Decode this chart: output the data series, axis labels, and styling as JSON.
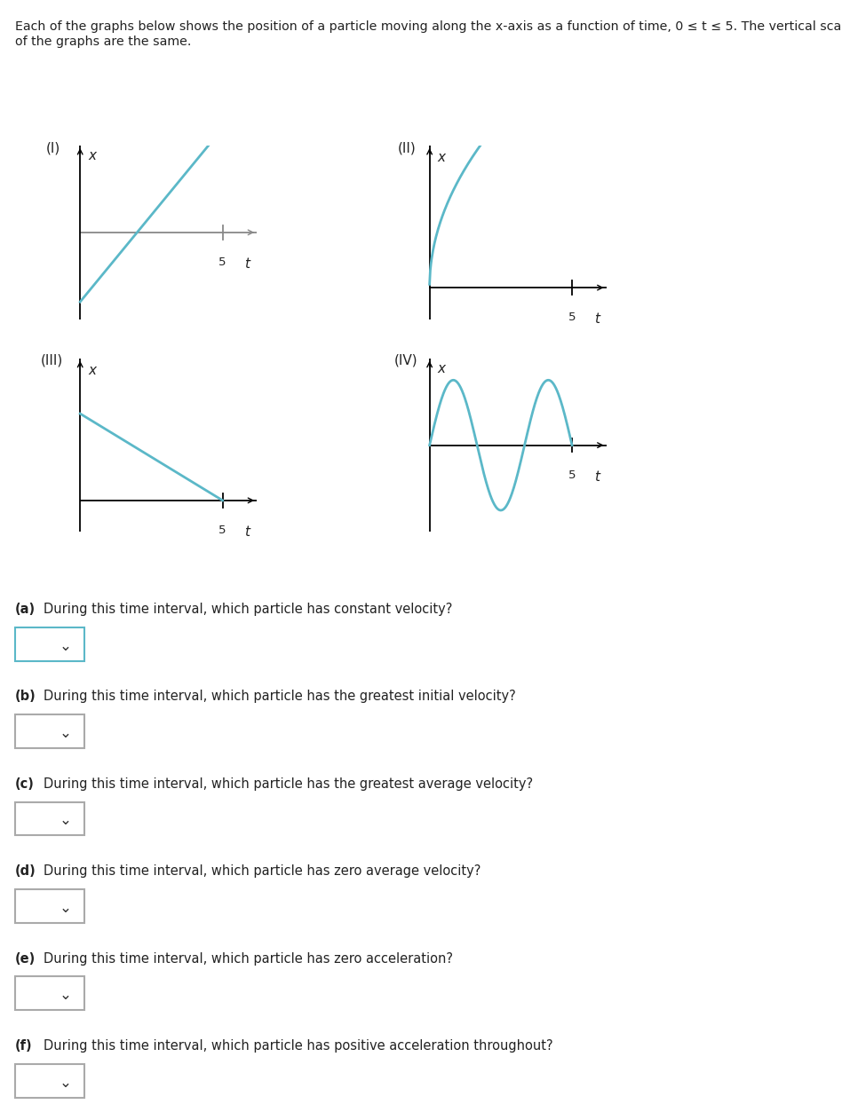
{
  "title_line1": "Each of the graphs below shows the position of a particle moving along the x-axis as a function of time, 0 ≤ t ≤ 5. The vertical scales",
  "title_line2": "of the graphs are the same.",
  "curve_color": "#5bb8c8",
  "axis_color": "#000000",
  "gray_axis_color": "#888888",
  "text_color": "#222222",
  "background_color": "#ffffff",
  "questions": [
    {
      "label": "(a)",
      "bold": true,
      "text": "During this time interval, which particle has constant velocity?"
    },
    {
      "label": "(b)",
      "bold": true,
      "text": "During this time interval, which particle has the greatest initial velocity?"
    },
    {
      "label": "(c)",
      "bold": true,
      "text": "During this time interval, which particle has the greatest average velocity?"
    },
    {
      "label": "(d)",
      "bold": true,
      "text": "During this time interval, which particle has zero average velocity?"
    },
    {
      "label": "(e)",
      "bold": true,
      "text": "During this time interval, which particle has zero acceleration?"
    },
    {
      "label": "(f)",
      "bold": true,
      "text": "During this time interval, which particle has positive acceleration throughout?"
    }
  ],
  "dropdown_border_colors": [
    "#5bb8c8",
    "#aaaaaa",
    "#aaaaaa",
    "#aaaaaa",
    "#aaaaaa",
    "#aaaaaa"
  ]
}
